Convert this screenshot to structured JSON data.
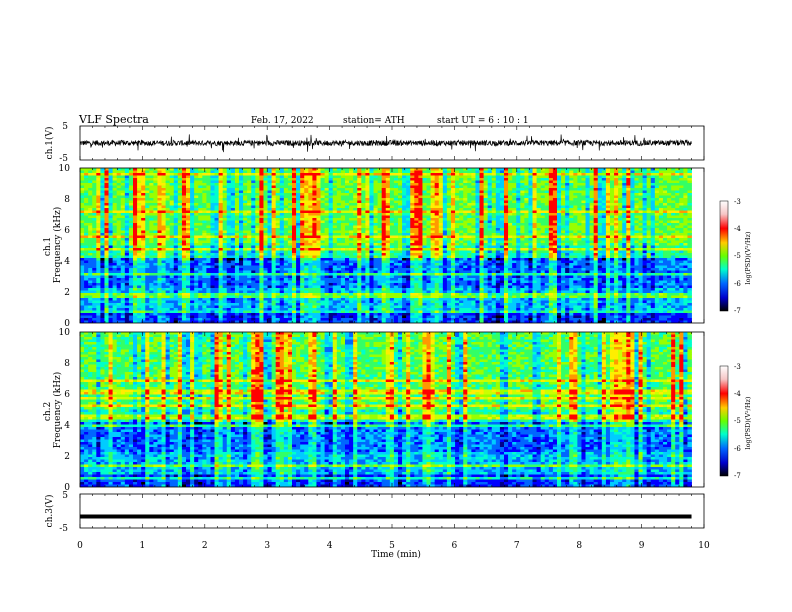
{
  "header": {
    "title": "VLF  Spectra",
    "date": "Feb. 17, 2022",
    "station": "station= ATH",
    "start": "start  UT  =   6  : 10 : 1"
  },
  "chart_data": [
    {
      "type": "line",
      "id": "ch1-waveform",
      "ylabel": "ch.1(V)",
      "ylim": [
        -5,
        5
      ],
      "yticks": [
        "5",
        "-5"
      ],
      "series": [
        {
          "values": "broadband noise waveform centered near 0 V, amplitude about ±1 V with spikes"
        }
      ],
      "color": "#000000"
    },
    {
      "type": "heatmap",
      "id": "ch1-spectrogram",
      "ylabel": "ch.1\nFrequency  (kHz)",
      "ylim": [
        0,
        10
      ],
      "yticks": [
        "0",
        "2",
        "4",
        "6",
        "8",
        "10"
      ],
      "colorbar": {
        "label": "log(PSD)(V²/Hz)",
        "ticks": [
          "-3",
          "-4",
          "-5",
          "-6",
          "-7"
        ]
      }
    },
    {
      "type": "heatmap",
      "id": "ch2-spectrogram",
      "ylabel": "ch.2\nFrequency  (kHz)",
      "ylim": [
        0,
        10
      ],
      "yticks": [
        "0",
        "2",
        "4",
        "6",
        "8",
        "10"
      ],
      "colorbar": {
        "label": "log(PSD)(V²/Hz)",
        "ticks": [
          "-3",
          "-4",
          "-5",
          "-6",
          "-7"
        ]
      }
    },
    {
      "type": "line",
      "id": "ch3-waveform",
      "ylabel": "ch.3(V)",
      "ylim": [
        -5,
        5
      ],
      "yticks": [
        "5",
        "0",
        "-5"
      ],
      "series": [
        {
          "values": [
            -1.6,
            -1.6
          ],
          "x": [
            0,
            9.8
          ]
        }
      ],
      "color": "#000000"
    }
  ],
  "xaxis": {
    "label": "Time  (min)",
    "range": [
      0,
      10
    ],
    "ticks": [
      "0",
      "1",
      "2",
      "3",
      "4",
      "5",
      "6",
      "7",
      "8",
      "9",
      "10"
    ],
    "data_end": 9.8
  }
}
